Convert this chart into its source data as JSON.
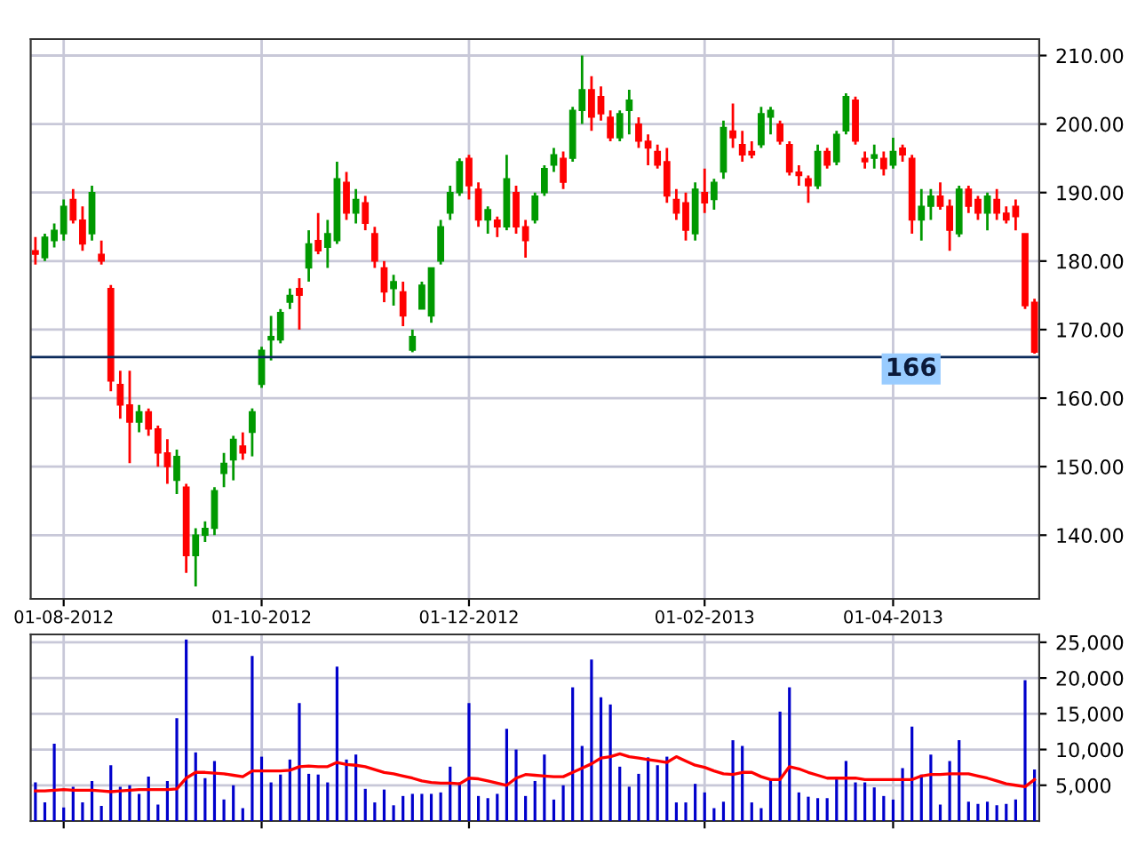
{
  "chart_data": [
    {
      "type": "candlestick",
      "categories": [
        null,
        null,
        null,
        "01-08-2012",
        null,
        null,
        null,
        null,
        null,
        null,
        null,
        null,
        null,
        null,
        null,
        null,
        null,
        null,
        null,
        null,
        null,
        null,
        null,
        null,
        "01-10-2012",
        null,
        null,
        null,
        null,
        null,
        null,
        null,
        null,
        null,
        null,
        null,
        null,
        null,
        null,
        null,
        null,
        null,
        null,
        null,
        null,
        null,
        "01-12-2012",
        null,
        null,
        null,
        null,
        null,
        null,
        null,
        null,
        null,
        null,
        null,
        null,
        null,
        null,
        null,
        null,
        null,
        null,
        null,
        null,
        null,
        null,
        null,
        null,
        "01-02-2013",
        null,
        null,
        null,
        null,
        null,
        null,
        null,
        null,
        null,
        null,
        null,
        null,
        null,
        null,
        null,
        null,
        null,
        null,
        null,
        "01-04-2013",
        null,
        null,
        null,
        null,
        null,
        null,
        null,
        null,
        null,
        null,
        null,
        null,
        null,
        null,
        null
      ],
      "ohlc": [
        [
          181.5,
          183.5,
          179.5,
          181
        ],
        [
          180.5,
          184,
          180,
          183.5
        ],
        [
          183,
          185.5,
          182,
          184.5
        ],
        [
          184,
          189,
          183,
          188
        ],
        [
          189,
          190.5,
          185.5,
          186
        ],
        [
          186,
          188,
          181.5,
          182.5
        ],
        [
          184,
          191,
          183,
          190
        ],
        [
          181,
          183,
          179.5,
          180
        ],
        [
          176,
          176.5,
          161,
          162.5
        ],
        [
          162,
          164,
          157,
          159
        ],
        [
          159,
          164,
          150.5,
          156.5
        ],
        [
          156.5,
          159,
          155,
          158
        ],
        [
          158,
          158.5,
          154.5,
          155.5
        ],
        [
          155.5,
          156,
          150,
          152
        ],
        [
          152,
          154,
          147.5,
          150
        ],
        [
          148,
          152.5,
          146,
          151.5
        ],
        [
          147,
          147.5,
          134.5,
          137
        ],
        [
          137,
          141,
          132.5,
          140
        ],
        [
          140,
          142,
          139,
          141
        ],
        [
          141,
          147,
          140,
          146.5
        ],
        [
          149,
          152,
          147,
          150.5
        ],
        [
          151,
          154.5,
          148,
          154
        ],
        [
          153,
          155,
          151,
          152
        ],
        [
          155,
          158.5,
          151.5,
          158
        ],
        [
          162,
          167.5,
          161.5,
          167
        ],
        [
          168.5,
          172,
          165.5,
          169
        ],
        [
          168.5,
          173,
          168,
          172.5
        ],
        [
          174,
          176,
          173,
          175
        ],
        [
          176,
          177.5,
          170,
          175
        ],
        [
          179,
          184.5,
          177,
          182.5
        ],
        [
          183,
          187,
          181,
          181.5
        ],
        [
          182,
          186,
          179,
          184
        ],
        [
          183,
          194.5,
          182.5,
          192
        ],
        [
          191.5,
          193,
          186,
          187
        ],
        [
          187,
          190.5,
          185.5,
          189
        ],
        [
          188.5,
          189.5,
          184.5,
          185.5
        ],
        [
          184,
          185,
          179,
          180
        ],
        [
          179,
          180,
          174,
          175.5
        ],
        [
          176,
          178,
          173.5,
          177
        ],
        [
          175.5,
          177,
          170.5,
          172
        ],
        [
          167,
          170,
          166.7,
          169
        ],
        [
          173,
          177,
          173,
          176.5
        ],
        [
          172,
          179,
          171,
          179
        ],
        [
          180,
          186,
          179.5,
          185
        ],
        [
          187,
          191,
          186,
          190
        ],
        [
          190,
          195,
          189.5,
          194.5
        ],
        [
          195,
          195.5,
          189,
          191
        ],
        [
          190.5,
          191.5,
          185,
          186
        ],
        [
          186,
          188,
          184,
          187.5
        ],
        [
          186,
          186.5,
          183.5,
          185
        ],
        [
          185,
          195.5,
          184.5,
          192
        ],
        [
          190,
          191,
          184,
          185
        ],
        [
          185,
          186,
          180.5,
          183
        ],
        [
          186,
          190,
          185.5,
          189.5
        ],
        [
          190,
          194,
          189.5,
          193.5
        ],
        [
          194,
          196.5,
          193,
          195.5
        ],
        [
          195,
          196,
          190.5,
          191.5
        ],
        [
          195,
          202.5,
          194.5,
          202
        ],
        [
          202,
          210,
          200,
          205
        ],
        [
          205,
          207,
          199,
          201
        ],
        [
          204,
          205.5,
          200.5,
          201.5
        ],
        [
          201,
          202,
          197.5,
          198
        ],
        [
          198,
          202,
          197.5,
          201.5
        ],
        [
          202,
          205,
          198.5,
          203.5
        ],
        [
          200,
          201,
          196.5,
          197.5
        ],
        [
          197.5,
          198.5,
          194,
          196.5
        ],
        [
          196,
          197,
          193.5,
          194
        ],
        [
          194.5,
          196.5,
          188.5,
          189.5
        ],
        [
          189,
          190.5,
          186,
          187
        ],
        [
          188.5,
          190,
          183,
          184.5
        ],
        [
          184,
          191.5,
          183,
          190.5
        ],
        [
          190,
          193.5,
          187,
          188.5
        ],
        [
          189,
          192,
          187.5,
          191.5
        ],
        [
          193,
          200.5,
          192,
          199.5
        ],
        [
          199,
          203,
          196.5,
          198
        ],
        [
          197,
          199,
          194.5,
          195.5
        ],
        [
          196,
          197.5,
          195,
          195.5
        ],
        [
          197,
          202.5,
          196.5,
          201.5
        ],
        [
          201,
          202.5,
          198.5,
          202
        ],
        [
          200,
          200.5,
          197,
          197.5
        ],
        [
          197,
          197.5,
          192.5,
          193
        ],
        [
          193,
          194,
          191,
          192.5
        ],
        [
          192,
          192.5,
          188.5,
          191
        ],
        [
          191,
          197,
          190.5,
          196
        ],
        [
          196,
          196.5,
          193.5,
          194
        ],
        [
          194.5,
          199,
          194,
          198.5
        ],
        [
          199,
          204.5,
          198.5,
          204
        ],
        [
          203.5,
          204,
          197,
          197.5
        ],
        [
          195,
          196,
          193.5,
          194.5
        ],
        [
          195,
          197,
          193.5,
          195.5
        ],
        [
          195,
          196,
          192.5,
          193.5
        ],
        [
          194,
          198,
          193.5,
          196
        ],
        [
          196.5,
          197,
          194.5,
          195.5
        ],
        [
          195,
          195.5,
          184,
          186
        ],
        [
          186,
          190.5,
          183,
          188
        ],
        [
          188,
          190.5,
          186,
          189.5
        ],
        [
          189.5,
          191.5,
          187.5,
          188
        ],
        [
          188,
          189,
          181.5,
          184.5
        ],
        [
          184,
          191,
          183.5,
          190.5
        ],
        [
          190.5,
          191,
          187,
          188
        ],
        [
          189,
          189.5,
          186,
          187
        ],
        [
          187,
          190,
          184.5,
          189.5
        ],
        [
          189,
          190.5,
          186,
          187
        ],
        [
          187,
          188,
          185.5,
          186
        ],
        [
          188,
          189,
          184.5,
          186.5
        ],
        [
          184,
          184,
          173,
          173.5
        ],
        [
          174,
          174.5,
          166.5,
          166.7
        ]
      ],
      "ylim": [
        130.7,
        212.4
      ],
      "yticks": [
        {
          "value": 140,
          "label": "140.00"
        },
        {
          "value": 150,
          "label": "150.00"
        },
        {
          "value": 160,
          "label": "160.00"
        },
        {
          "value": 170,
          "label": "170.00"
        },
        {
          "value": 180,
          "label": "180.00"
        },
        {
          "value": 190,
          "label": "190.00"
        },
        {
          "value": 200,
          "label": "200.00"
        },
        {
          "value": 210,
          "label": "210.00"
        }
      ],
      "ref_lines": [
        {
          "axis": "y",
          "value": 166,
          "label": "166",
          "color": "#0b2a5b"
        }
      ],
      "grid": true
    },
    {
      "type": "bar",
      "series": [
        {
          "type": "bar",
          "color": "#0000cc",
          "values": [
            5400,
            2600,
            10800,
            1900,
            4800,
            2600,
            5600,
            2100,
            7800,
            4800,
            5000,
            3800,
            6200,
            2300,
            5600,
            14400,
            25400,
            9600,
            6000,
            8400,
            3000,
            5000,
            1800,
            23100,
            9000,
            5400,
            6500,
            8600,
            16500,
            6600,
            6500,
            5400,
            21600,
            8600,
            9300,
            4500,
            2600,
            4400,
            2200,
            3500,
            3800,
            3800,
            3800,
            4000,
            7600,
            5400,
            16500,
            3500,
            3200,
            3800,
            12900,
            10000,
            3500,
            5600,
            9300,
            3000,
            5000,
            18700,
            10500,
            22600,
            17300,
            16300,
            7600,
            4800,
            6600,
            8900,
            7800,
            9000,
            2600,
            2600,
            5200,
            4000,
            1800,
            2700,
            11300,
            10500,
            2600,
            1800,
            5800,
            15300,
            18700,
            4000,
            3400,
            3200,
            3200,
            6200,
            8400,
            5400,
            5400,
            4700,
            3500,
            3000,
            7400,
            13200,
            6500,
            9300,
            2300,
            8400,
            11300,
            2700,
            2400,
            2700,
            2200,
            2400,
            3000,
            19700,
            7200
          ]
        },
        {
          "type": "line",
          "color": "#ff0000",
          "values": [
            4200,
            4200,
            4300,
            4400,
            4300,
            4300,
            4300,
            4200,
            4100,
            4200,
            4300,
            4400,
            4400,
            4400,
            4400,
            4500,
            6000,
            6800,
            6800,
            6700,
            6600,
            6400,
            6200,
            7000,
            7000,
            7000,
            7000,
            7100,
            7600,
            7700,
            7600,
            7600,
            8200,
            7900,
            7800,
            7600,
            7200,
            6800,
            6600,
            6300,
            6000,
            5600,
            5400,
            5300,
            5300,
            5200,
            6000,
            5900,
            5600,
            5300,
            5000,
            6000,
            6500,
            6400,
            6300,
            6200,
            6200,
            6800,
            7400,
            8000,
            8800,
            9000,
            9400,
            9000,
            8800,
            8600,
            8400,
            8200,
            9000,
            8400,
            7800,
            7500,
            7000,
            6600,
            6500,
            6800,
            6800,
            6200,
            5800,
            5800,
            7600,
            7300,
            6800,
            6400,
            6000,
            6000,
            6000,
            6000,
            5800,
            5800,
            5800,
            5800,
            5800,
            5800,
            6300,
            6500,
            6500,
            6600,
            6600,
            6600,
            6300,
            6000,
            5600,
            5200,
            5000,
            4800,
            5800
          ]
        }
      ],
      "ylim": [
        0,
        26100
      ],
      "yticks": [
        {
          "value": 5000,
          "label": "5,000"
        },
        {
          "value": 10000,
          "label": "10,000"
        },
        {
          "value": 15000,
          "label": "15,000"
        },
        {
          "value": 20000,
          "label": "20,000"
        },
        {
          "value": 25000,
          "label": "25,000"
        }
      ],
      "tick_labels": "y",
      "grid": true
    }
  ]
}
